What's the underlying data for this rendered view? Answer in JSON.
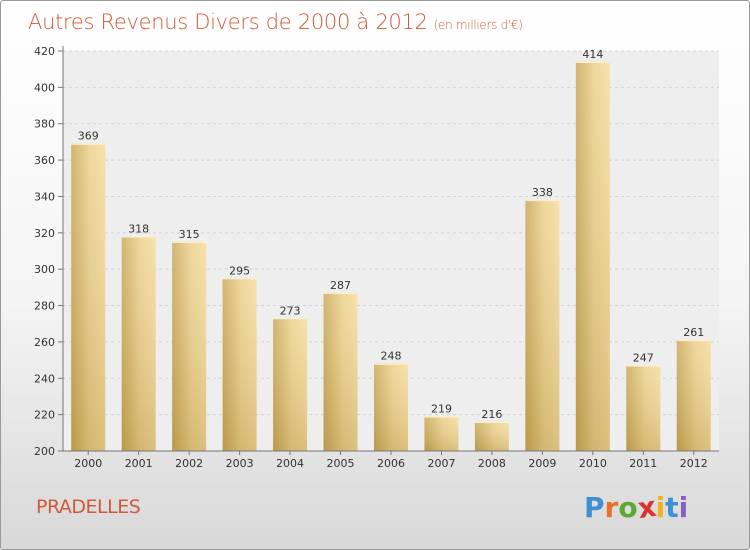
{
  "title": "Autres Revenus Divers de 2000 à 2012",
  "subtitle": "(en milliers d'€)",
  "location": "PRADELLES",
  "logo": {
    "letters": [
      "P",
      "r",
      "o",
      "x",
      "i",
      "t",
      "i"
    ],
    "colors": [
      "#3d8fd6",
      "#e8702a",
      "#5aaa32",
      "#d9342b",
      "#f0b21e",
      "#3d8fd6",
      "#8a5fc4"
    ]
  },
  "chart_data": {
    "type": "bar",
    "categories": [
      "2000",
      "2001",
      "2002",
      "2003",
      "2004",
      "2005",
      "2006",
      "2007",
      "2008",
      "2009",
      "2010",
      "2011",
      "2012"
    ],
    "values": [
      369,
      318,
      315,
      295,
      273,
      287,
      248,
      219,
      216,
      338,
      414,
      247,
      261
    ],
    "title": "Autres Revenus Divers de 2000 à 2012",
    "subtitle": "(en milliers d'€)",
    "xlabel": "",
    "ylabel": "",
    "ylim": [
      200,
      420
    ],
    "yticks": [
      200,
      220,
      240,
      260,
      280,
      300,
      320,
      340,
      360,
      380,
      400,
      420
    ],
    "grid": true,
    "bar_color": "#dfc07a"
  }
}
